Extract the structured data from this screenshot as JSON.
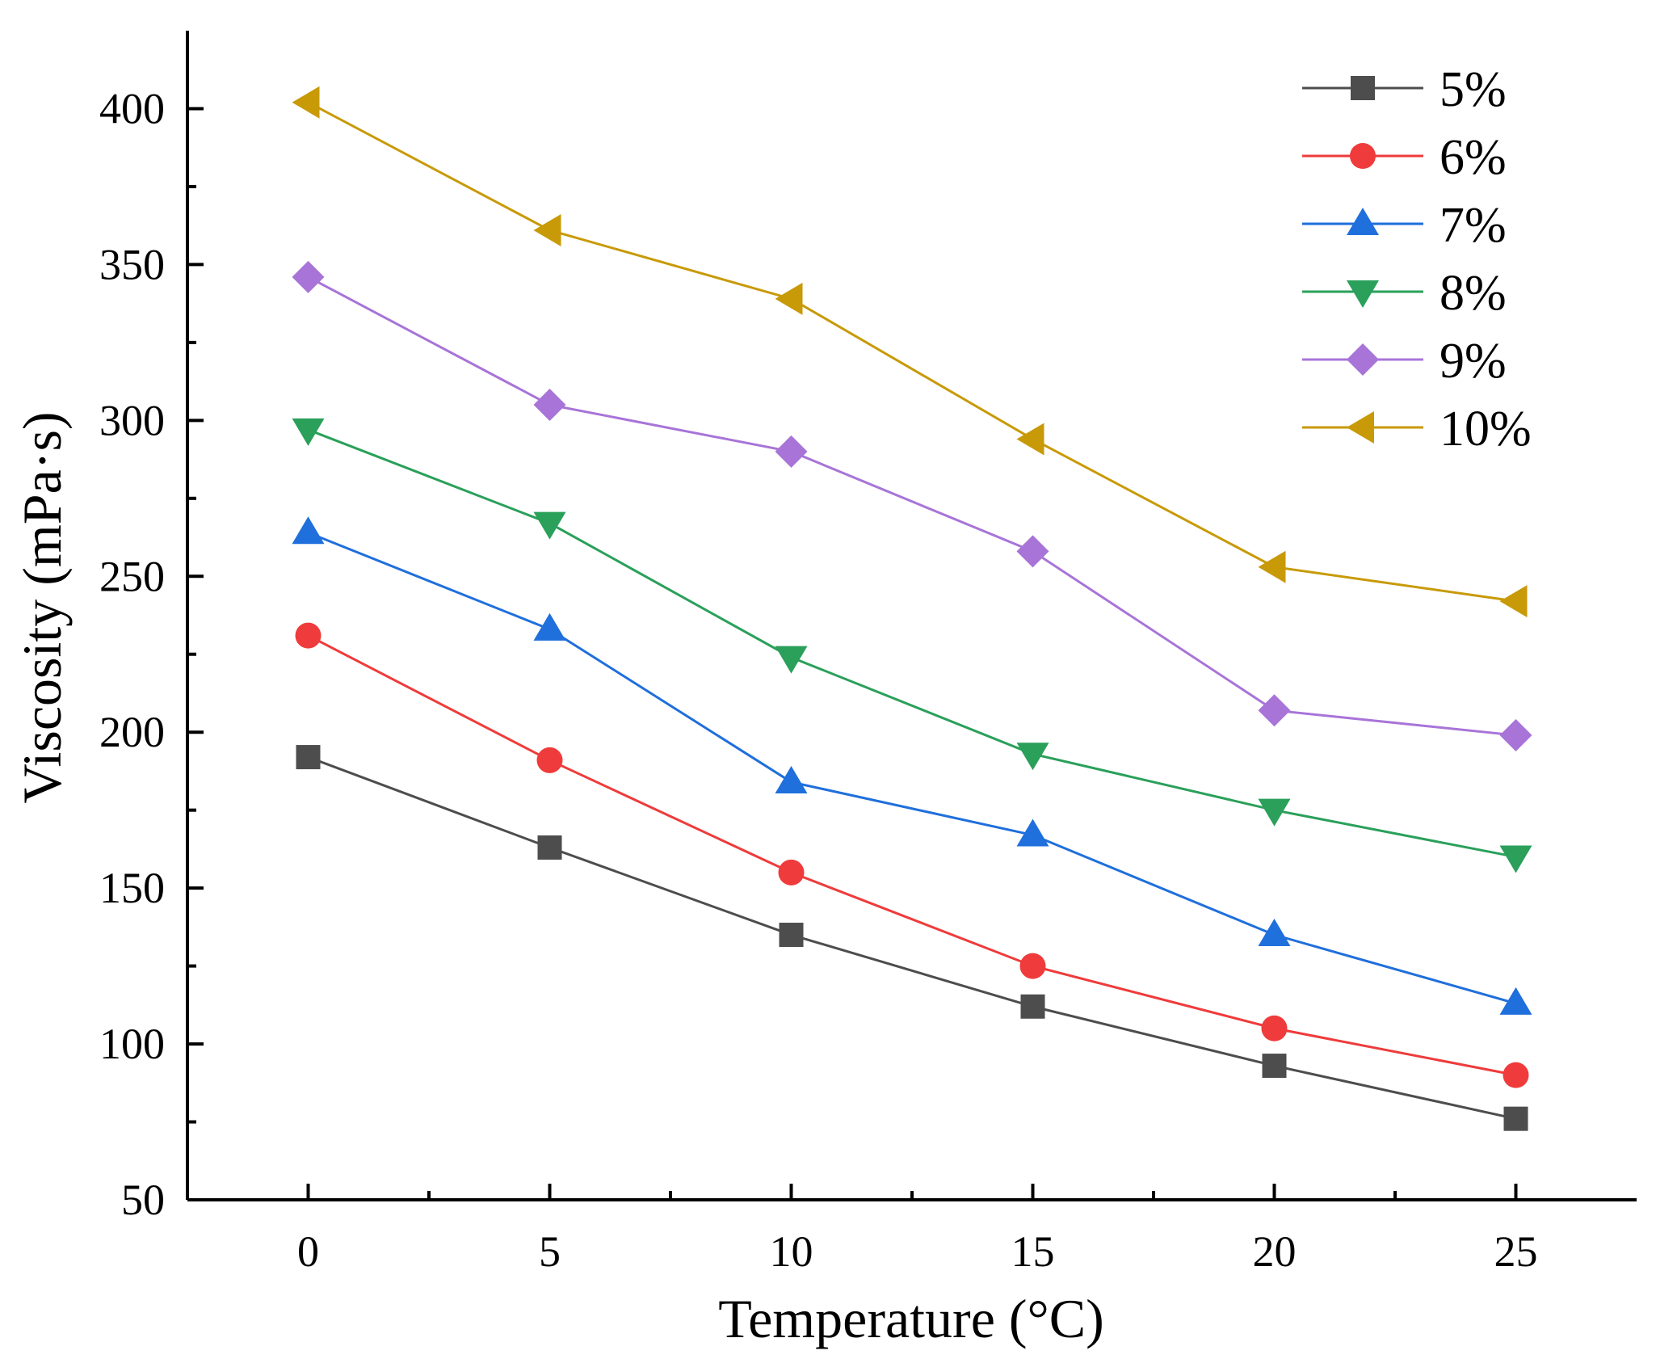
{
  "chart_data": {
    "type": "line",
    "title": "",
    "xlabel": "Temperature (°C)",
    "ylabel": "Viscosity (mPa·s)",
    "x": [
      0,
      5,
      10,
      15,
      20,
      25
    ],
    "xlim": [
      -2.5,
      27.5
    ],
    "ylim": [
      50,
      425
    ],
    "xticks": [
      0,
      5,
      10,
      15,
      20,
      25
    ],
    "yticks": [
      50,
      100,
      150,
      200,
      250,
      300,
      350,
      400
    ],
    "xtick_labels": [
      "0",
      "5",
      "10",
      "15",
      "20",
      "25"
    ],
    "ytick_labels": [
      "50",
      "100",
      "150",
      "200",
      "250",
      "300",
      "350",
      "400"
    ],
    "grid": false,
    "legend_position": "top-right",
    "series": [
      {
        "name": "5%",
        "marker": "square",
        "color": "#4d4d4d",
        "values": [
          192,
          163,
          135,
          112,
          93,
          76
        ]
      },
      {
        "name": "6%",
        "marker": "circle",
        "color": "#ef3b3b",
        "values": [
          231,
          191,
          155,
          125,
          105,
          90
        ]
      },
      {
        "name": "7%",
        "marker": "triangle-up",
        "color": "#1f6fdc",
        "values": [
          264,
          233,
          184,
          167,
          135,
          113
        ]
      },
      {
        "name": "8%",
        "marker": "triangle-down",
        "color": "#2aa05a",
        "values": [
          297,
          267,
          224,
          193,
          175,
          160
        ]
      },
      {
        "name": "9%",
        "marker": "diamond",
        "color": "#a874d8",
        "values": [
          346,
          305,
          290,
          258,
          207,
          199
        ]
      },
      {
        "name": "10%",
        "marker": "triangle-left",
        "color": "#c89a08",
        "values": [
          402,
          361,
          339,
          294,
          253,
          242
        ]
      }
    ]
  }
}
